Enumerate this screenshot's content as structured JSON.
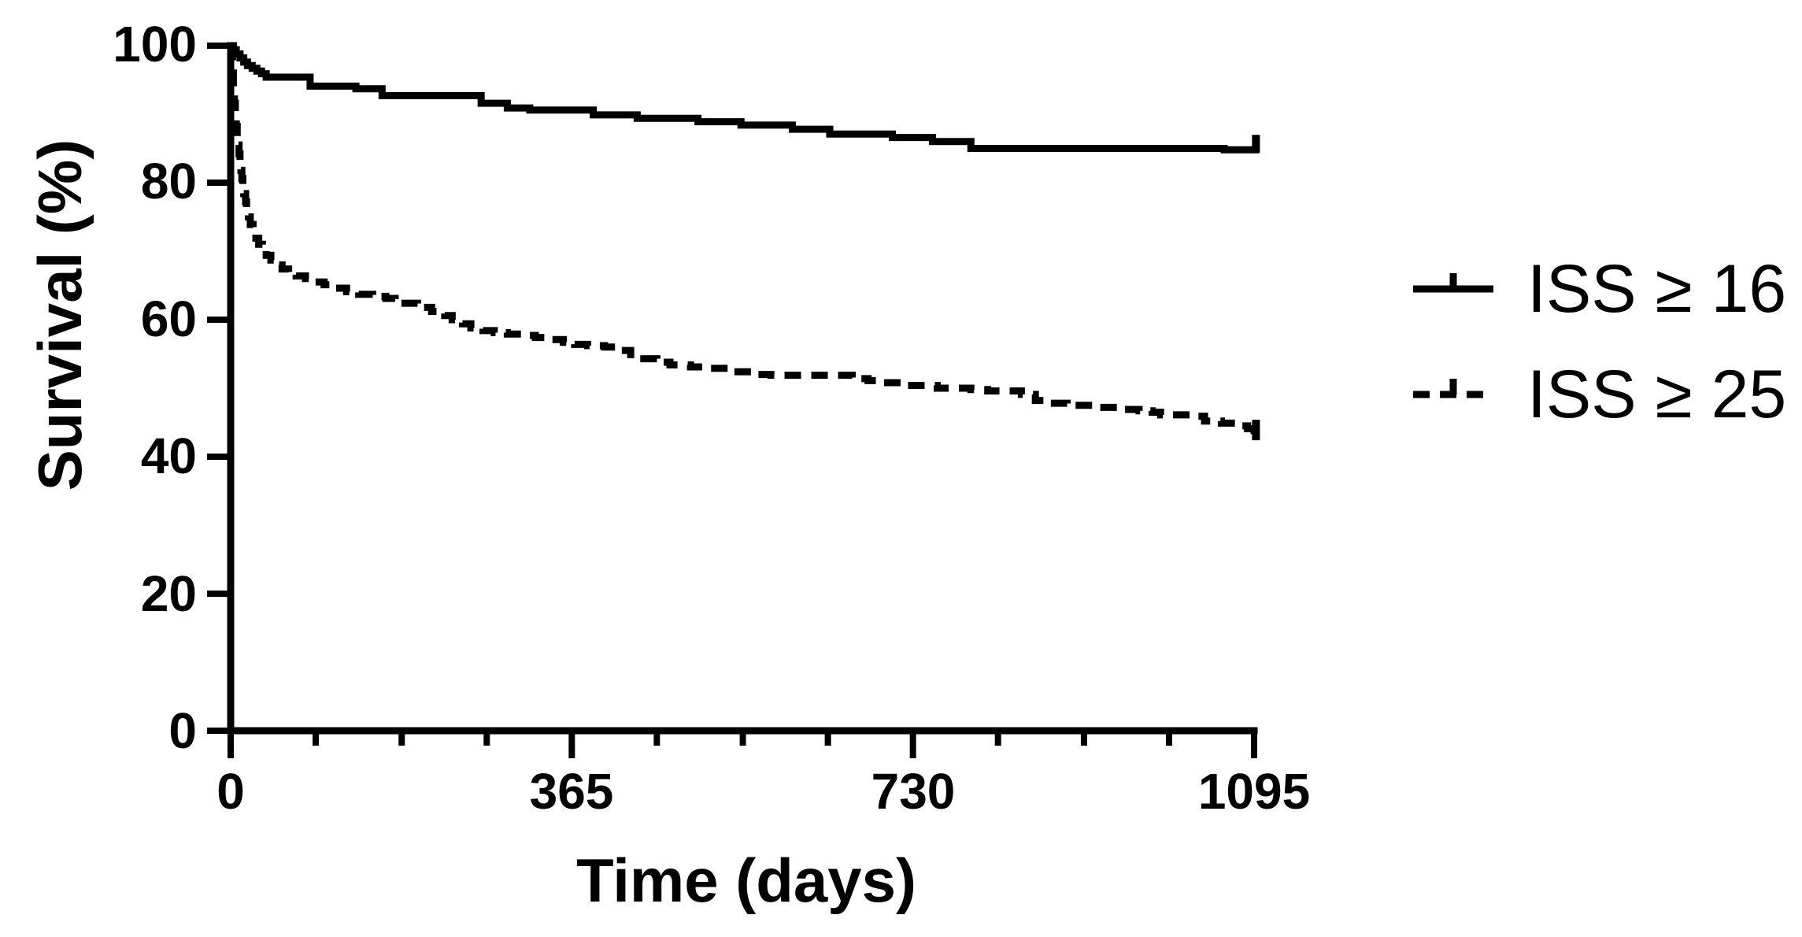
{
  "figure": {
    "background_color": "#ffffff",
    "ink_color": "#000000"
  },
  "axes": {
    "x_label": "Time (days)",
    "y_label": "Survival (%)",
    "x_tick_labels": [
      "0",
      "365",
      "730",
      "1095"
    ],
    "y_tick_labels": [
      "0",
      "20",
      "40",
      "60",
      "80",
      "100"
    ]
  },
  "legend": {
    "items": [
      {
        "label": "ISS ≥ 16",
        "line_style": "solid"
      },
      {
        "label": "ISS ≥ 25",
        "line_style": "dashed"
      }
    ]
  },
  "chart_data": {
    "type": "line",
    "subtype": "kaplan-meier-step",
    "title": "",
    "xlabel": "Time (days)",
    "ylabel": "Survival (%)",
    "xlim": [
      0,
      1113
    ],
    "ylim": [
      0,
      100
    ],
    "x_ticks_major": [
      0,
      365,
      730,
      1095
    ],
    "x_ticks_minor": [
      91,
      183,
      274,
      456,
      548,
      639,
      821,
      913,
      1004
    ],
    "y_ticks": [
      0,
      20,
      40,
      60,
      80,
      100
    ],
    "grid": false,
    "legend_position": "right",
    "series": [
      {
        "name": "ISS ≥ 16",
        "style": "solid",
        "step": true,
        "points": [
          [
            0,
            100
          ],
          [
            3,
            99.4
          ],
          [
            6,
            98.8
          ],
          [
            10,
            98.2
          ],
          [
            14,
            97.6
          ],
          [
            18,
            97.1
          ],
          [
            23,
            96.7
          ],
          [
            28,
            96.3
          ],
          [
            33,
            95.9
          ],
          [
            38,
            95.4
          ],
          [
            85,
            94.1
          ],
          [
            134,
            93.7
          ],
          [
            162,
            92.7
          ],
          [
            268,
            91.6
          ],
          [
            296,
            90.9
          ],
          [
            320,
            90.6
          ],
          [
            388,
            89.9
          ],
          [
            435,
            89.4
          ],
          [
            500,
            88.9
          ],
          [
            546,
            88.4
          ],
          [
            601,
            87.8
          ],
          [
            641,
            87.1
          ],
          [
            708,
            86.6
          ],
          [
            751,
            86.0
          ],
          [
            792,
            85.0
          ],
          [
            1063,
            84.8
          ],
          [
            1100,
            84.8
          ]
        ],
        "censor": {
          "day": 1097,
          "pct": 84.8,
          "dir": "up"
        }
      },
      {
        "name": "ISS ≥ 25",
        "style": "dashed",
        "step": true,
        "points": [
          [
            0,
            100
          ],
          [
            1,
            98
          ],
          [
            2,
            96
          ],
          [
            3,
            93.8
          ],
          [
            4,
            91.6
          ],
          [
            5,
            89.8
          ],
          [
            6,
            88.2
          ],
          [
            7,
            86.8
          ],
          [
            8,
            85.5
          ],
          [
            9,
            84.2
          ],
          [
            10,
            83
          ],
          [
            11,
            81.8
          ],
          [
            12,
            80.6
          ],
          [
            13,
            79.5
          ],
          [
            14,
            78.4
          ],
          [
            16,
            77.2
          ],
          [
            17,
            76.1
          ],
          [
            19,
            75
          ],
          [
            21,
            73.9
          ],
          [
            24,
            72.8
          ],
          [
            27,
            71.9
          ],
          [
            30,
            71
          ],
          [
            34,
            70.2
          ],
          [
            38,
            69.4
          ],
          [
            43,
            68.7
          ],
          [
            48,
            68
          ],
          [
            55,
            67.4
          ],
          [
            62,
            66.9
          ],
          [
            70,
            66.4
          ],
          [
            80,
            66
          ],
          [
            90,
            65.5
          ],
          [
            100,
            65.1
          ],
          [
            111,
            64.6
          ],
          [
            124,
            64.1
          ],
          [
            137,
            63.7
          ],
          [
            152,
            63.4
          ],
          [
            166,
            63.1
          ],
          [
            176,
            62.4
          ],
          [
            200,
            61.8
          ],
          [
            215,
            61.2
          ],
          [
            229,
            60.6
          ],
          [
            237,
            60
          ],
          [
            248,
            59.4
          ],
          [
            257,
            58.8
          ],
          [
            270,
            58.4
          ],
          [
            282,
            58.1
          ],
          [
            296,
            57.9
          ],
          [
            311,
            57.7
          ],
          [
            326,
            57.4
          ],
          [
            340,
            57.1
          ],
          [
            356,
            56.7
          ],
          [
            368,
            56.4
          ],
          [
            382,
            56.2
          ],
          [
            400,
            56
          ],
          [
            414,
            55.5
          ],
          [
            428,
            54.9
          ],
          [
            442,
            54.3
          ],
          [
            456,
            53.8
          ],
          [
            470,
            53.4
          ],
          [
            492,
            53.1
          ],
          [
            514,
            52.9
          ],
          [
            537,
            52.4
          ],
          [
            562,
            52
          ],
          [
            578,
            51.9
          ],
          [
            652,
            51.9
          ],
          [
            665,
            51.4
          ],
          [
            682,
            51.1
          ],
          [
            699,
            50.8
          ],
          [
            722,
            50.4
          ],
          [
            756,
            50
          ],
          [
            792,
            49.8
          ],
          [
            810,
            49.6
          ],
          [
            846,
            49.1
          ],
          [
            861,
            48.2
          ],
          [
            877,
            47.8
          ],
          [
            895,
            47.5
          ],
          [
            922,
            47.2
          ],
          [
            949,
            46.9
          ],
          [
            972,
            46.7
          ],
          [
            986,
            46.5
          ],
          [
            995,
            46.1
          ],
          [
            1032,
            45.9
          ],
          [
            1042,
            45.2
          ],
          [
            1060,
            44.9
          ],
          [
            1075,
            44.5
          ],
          [
            1088,
            44.1
          ],
          [
            1095,
            43.8
          ],
          [
            1100,
            43.8
          ]
        ],
        "censor": {
          "day": 1097,
          "pct": 43.9,
          "dir": "mid"
        }
      }
    ]
  }
}
